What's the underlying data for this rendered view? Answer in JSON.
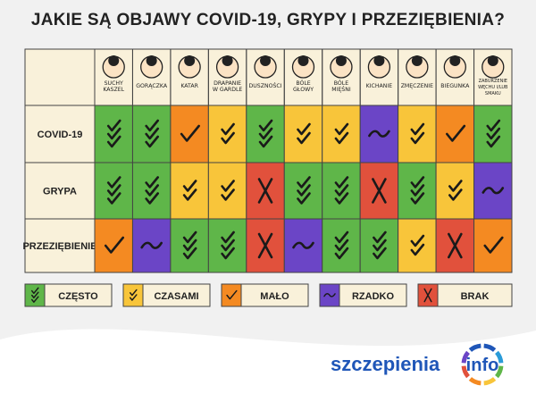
{
  "header": {
    "title": "JAKIE SĄ OBJAWY COVID-19, GRYPY I PRZEZIĘBIENIA?"
  },
  "table": {
    "columns": [
      [
        "SUCHY",
        "KASZEL"
      ],
      [
        "GORĄCZKA"
      ],
      [
        "KATAR"
      ],
      [
        "DRAPANIE",
        "W GARDLE"
      ],
      [
        "DUSZNOŚCI"
      ],
      [
        "BÓLE",
        "GŁOWY"
      ],
      [
        "BÓLE",
        "MIĘŚNI"
      ],
      [
        "KICHANIE"
      ],
      [
        "ZMĘCZENIE"
      ],
      [
        "BIEGUNKA"
      ],
      [
        "ZABURZENIE",
        "WĘCHU I/LUB",
        "SMAKU"
      ]
    ],
    "rows": [
      {
        "label": "COVID-19",
        "cells": [
          0,
          0,
          2,
          1,
          0,
          1,
          1,
          3,
          1,
          2,
          0
        ]
      },
      {
        "label": "GRYPA",
        "cells": [
          0,
          0,
          1,
          1,
          4,
          0,
          0,
          4,
          0,
          1,
          3
        ]
      },
      {
        "label": "PRZEZIĘBIENIE",
        "cells": [
          2,
          3,
          0,
          0,
          4,
          3,
          0,
          0,
          1,
          4,
          2
        ]
      }
    ]
  },
  "legend": [
    {
      "label": "CZĘSTO",
      "color": "#5fb649"
    },
    {
      "label": "CZASAMI",
      "color": "#f8c53a"
    },
    {
      "label": "MAŁO",
      "color": "#f48a22"
    },
    {
      "label": "RZADKO",
      "color": "#6b45c6"
    },
    {
      "label": "BRAK",
      "color": "#e1513c"
    }
  ],
  "logo": {
    "name": "szczepienia",
    "suffix": "info"
  }
}
